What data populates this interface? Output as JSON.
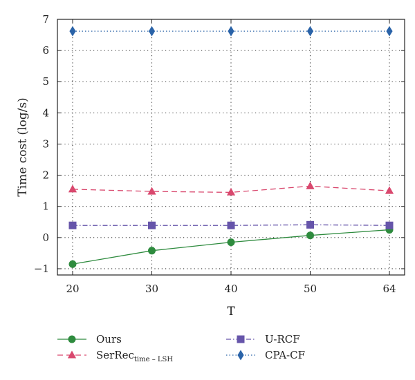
{
  "chart_data": {
    "type": "line",
    "xlabel": "T",
    "ylabel": "Time cost (log/s)",
    "x": [
      20,
      30,
      40,
      50,
      64
    ],
    "xticks": [
      "20",
      "30",
      "40",
      "50",
      "64"
    ],
    "ylim": [
      -1.2,
      7
    ],
    "yticks": [
      "−1",
      "0",
      "1",
      "2",
      "3",
      "4",
      "5",
      "6",
      "7"
    ],
    "grid": true,
    "legend_position": "bottom",
    "series": [
      {
        "name": "Ours",
        "name_sub": "",
        "values": [
          -0.85,
          -0.42,
          -0.15,
          0.07,
          0.25
        ],
        "color": "#2e8b3e",
        "marker": "circle",
        "dash": "solid"
      },
      {
        "name": "SerRec",
        "name_sub": "time – LSH",
        "values": [
          1.55,
          1.48,
          1.45,
          1.65,
          1.5
        ],
        "color": "#d9486e",
        "marker": "triangle",
        "dash": "dashed"
      },
      {
        "name": "U-RCF",
        "name_sub": "",
        "values": [
          0.39,
          0.39,
          0.39,
          0.41,
          0.39
        ],
        "color": "#6655aa",
        "marker": "square",
        "dash": "dashdot"
      },
      {
        "name": "CPA-CF",
        "name_sub": "",
        "values": [
          6.62,
          6.62,
          6.62,
          6.62,
          6.62
        ],
        "color": "#2a63a8",
        "marker": "diamond",
        "dash": "dotted"
      }
    ]
  }
}
